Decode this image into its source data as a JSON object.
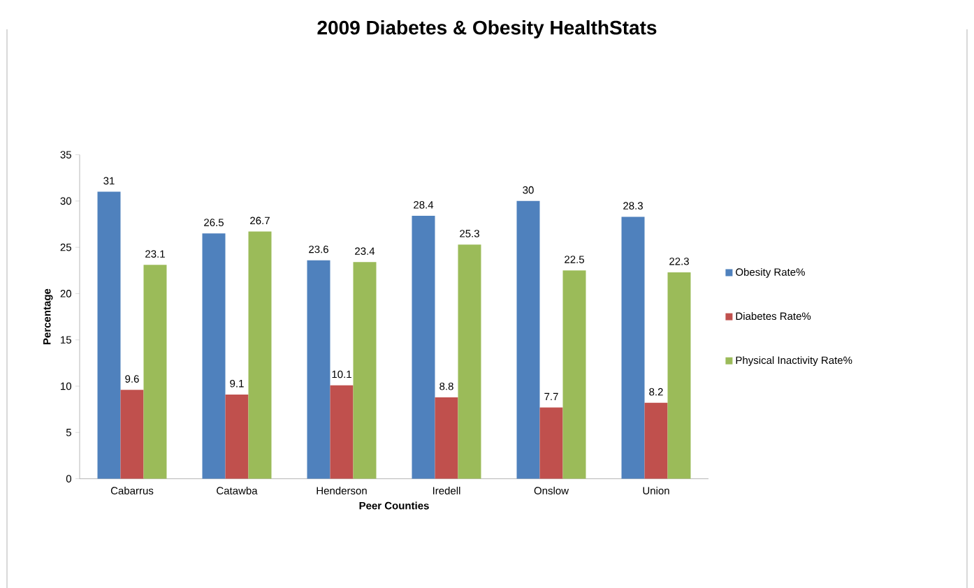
{
  "chart_data": {
    "type": "bar",
    "title": "2009 Diabetes & Obesity HealthStats",
    "xlabel": "Peer Counties",
    "ylabel": "Percentage",
    "categories": [
      "Cabarrus",
      "Catawba",
      "Henderson",
      "Iredell",
      "Onslow",
      "Union"
    ],
    "series": [
      {
        "name": "Obesity Rate%",
        "color": "#4f81bd",
        "values": [
          31,
          26.5,
          23.6,
          28.4,
          30,
          28.3
        ]
      },
      {
        "name": "Diabetes Rate%",
        "color": "#c0504d",
        "values": [
          9.6,
          9.1,
          10.1,
          8.8,
          7.7,
          8.2
        ]
      },
      {
        "name": "Physical Inactivity Rate%",
        "color": "#9bbb59",
        "values": [
          23.1,
          26.7,
          23.4,
          25.3,
          22.5,
          22.3
        ]
      }
    ],
    "ylim": [
      0,
      35
    ],
    "yticks": [
      0,
      5,
      10,
      15,
      20,
      25,
      30,
      35
    ],
    "grid": false,
    "legend": "right",
    "data_labels": true
  }
}
